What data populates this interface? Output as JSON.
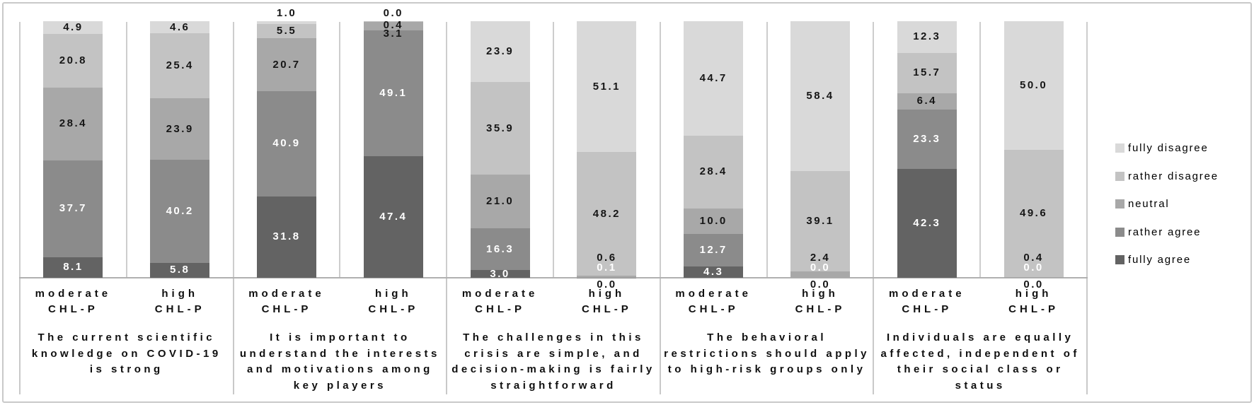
{
  "chart_data": {
    "type": "bar",
    "variant": "stacked-100-percent",
    "unit": "percent",
    "ylim": [
      0,
      100
    ],
    "grid": "category-separators-only",
    "legend_position": "right",
    "series_bottom_to_top": [
      {
        "name": "fully agree",
        "color": "#636363"
      },
      {
        "name": "rather agree",
        "color": "#8b8b8b"
      },
      {
        "name": "neutral",
        "color": "#a8a8a8"
      },
      {
        "name": "rather disagree",
        "color": "#c3c3c3"
      },
      {
        "name": "fully disagree",
        "color": "#d9d9d9"
      }
    ],
    "legend_top_to_bottom": [
      "fully disagree",
      "rather disagree",
      "neutral",
      "rather agree",
      "fully agree"
    ],
    "groups": [
      {
        "title": "The current scientific knowledge on COVID-19 is strong",
        "title_lines": [
          "The current scientific",
          "knowledge on COVID-19",
          "is strong"
        ],
        "bars": [
          {
            "tick_lines": [
              "moderate",
              "CHL-P"
            ],
            "values": [
              8.1,
              37.7,
              28.4,
              20.8,
              4.9
            ],
            "label_colors": [
              "white",
              "white",
              "black",
              "black",
              "black"
            ]
          },
          {
            "tick_lines": [
              "high",
              "CHL-P"
            ],
            "values": [
              5.8,
              40.2,
              23.9,
              25.4,
              4.6
            ],
            "label_colors": [
              "white",
              "white",
              "black",
              "black",
              "black"
            ]
          }
        ]
      },
      {
        "title": "It is important to understand the interests and motivations among key players",
        "title_lines": [
          "It is important to",
          "understand the interests",
          "and motivations among",
          "key players"
        ],
        "bars": [
          {
            "tick_lines": [
              "moderate",
              "CHL-P"
            ],
            "values": [
              31.8,
              40.9,
              20.7,
              5.5,
              1.0
            ],
            "label_colors": [
              "white",
              "white",
              "black",
              "black",
              "black"
            ]
          },
          {
            "tick_lines": [
              "high",
              "CHL-P"
            ],
            "values": [
              47.4,
              49.1,
              3.1,
              0.4,
              0.0
            ],
            "label_colors": [
              "white",
              "white",
              "black",
              "black",
              "black"
            ]
          }
        ]
      },
      {
        "title": "The challenges in this crisis are simple, and decision-making is fairly straightforward",
        "title_lines": [
          "The challenges in this",
          "crisis are simple, and",
          "decision-making is fairly",
          "straightforward"
        ],
        "bars": [
          {
            "tick_lines": [
              "moderate",
              "CHL-P"
            ],
            "values": [
              3.0,
              16.3,
              21.0,
              35.9,
              23.9
            ],
            "label_colors": [
              "white",
              "white",
              "black",
              "black",
              "black"
            ]
          },
          {
            "tick_lines": [
              "high",
              "CHL-P"
            ],
            "values": [
              0.0,
              0.1,
              0.6,
              48.2,
              51.1
            ],
            "label_colors": [
              "black",
              "white",
              "black",
              "black",
              "black"
            ]
          }
        ]
      },
      {
        "title": "The behavioral restrictions should apply to high-risk groups only",
        "title_lines": [
          "The behavioral",
          "restrictions should apply",
          "to high-risk groups only"
        ],
        "bars": [
          {
            "tick_lines": [
              "moderate",
              "CHL-P"
            ],
            "values": [
              4.3,
              12.7,
              10.0,
              28.4,
              44.7
            ],
            "label_colors": [
              "white",
              "white",
              "black",
              "black",
              "black"
            ]
          },
          {
            "tick_lines": [
              "high",
              "CHL-P"
            ],
            "values": [
              0.0,
              0.0,
              2.4,
              39.1,
              58.4
            ],
            "label_colors": [
              "black",
              "white",
              "black",
              "black",
              "black"
            ]
          }
        ]
      },
      {
        "title": "Individuals are equally affected, independent of their social class or status",
        "title_lines": [
          "Individuals are equally",
          "affected, independent of",
          "their social class or",
          "status"
        ],
        "bars": [
          {
            "tick_lines": [
              "moderate",
              "CHL-P"
            ],
            "values": [
              42.3,
              23.3,
              6.4,
              15.7,
              12.3
            ],
            "label_colors": [
              "white",
              "white",
              "black",
              "black",
              "black"
            ]
          },
          {
            "tick_lines": [
              "high",
              "CHL-P"
            ],
            "values": [
              0.0,
              0.0,
              0.4,
              49.6,
              50.0
            ],
            "label_colors": [
              "black",
              "white",
              "black",
              "black",
              "black"
            ]
          }
        ]
      }
    ]
  },
  "colors": {
    "background": "#ffffff",
    "frame_border": "#c9c9c9",
    "separator": "#cdcdcd",
    "axis_line": "#b0b0b0",
    "label_black": "#161616",
    "label_white": "#ffffff"
  }
}
